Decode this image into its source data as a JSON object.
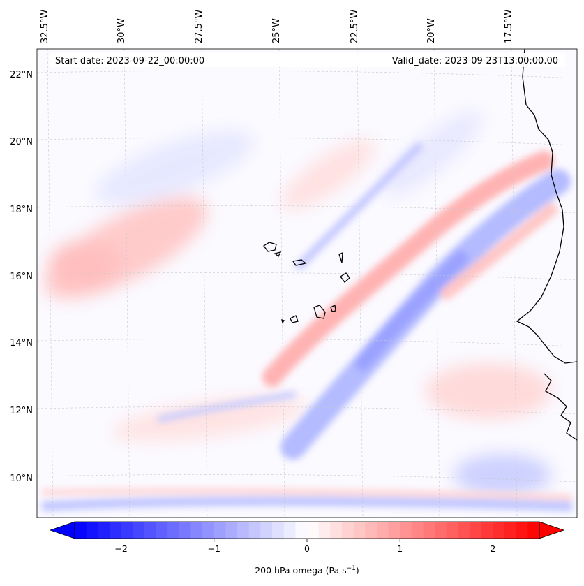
{
  "map": {
    "start_date": "Start date: 2023-09-22_00:00:00",
    "valid_date": "Valid_date: 2023-09-23T13:00:00.00",
    "lon_ticks": [
      "32.5°W",
      "30°W",
      "27.5°W",
      "25°W",
      "22.5°W",
      "20°W",
      "17.5°W"
    ],
    "lat_ticks": [
      "22°N",
      "20°N",
      "18°N",
      "16°N",
      "14°N",
      "12°N",
      "10°N"
    ],
    "field_colors": {
      "negative": "#0000ff",
      "zero": "#ffffff",
      "positive": "#ff0000"
    }
  },
  "colorbar": {
    "label_main": "200 hPa omega (Pa s",
    "label_exp": "−1",
    "label_close": ")",
    "ticks": [
      "−2",
      "−1",
      "0",
      "1",
      "2"
    ],
    "tick_values": [
      -2,
      -1,
      0,
      1,
      2
    ],
    "range": [
      -2.5,
      2.5
    ]
  }
}
